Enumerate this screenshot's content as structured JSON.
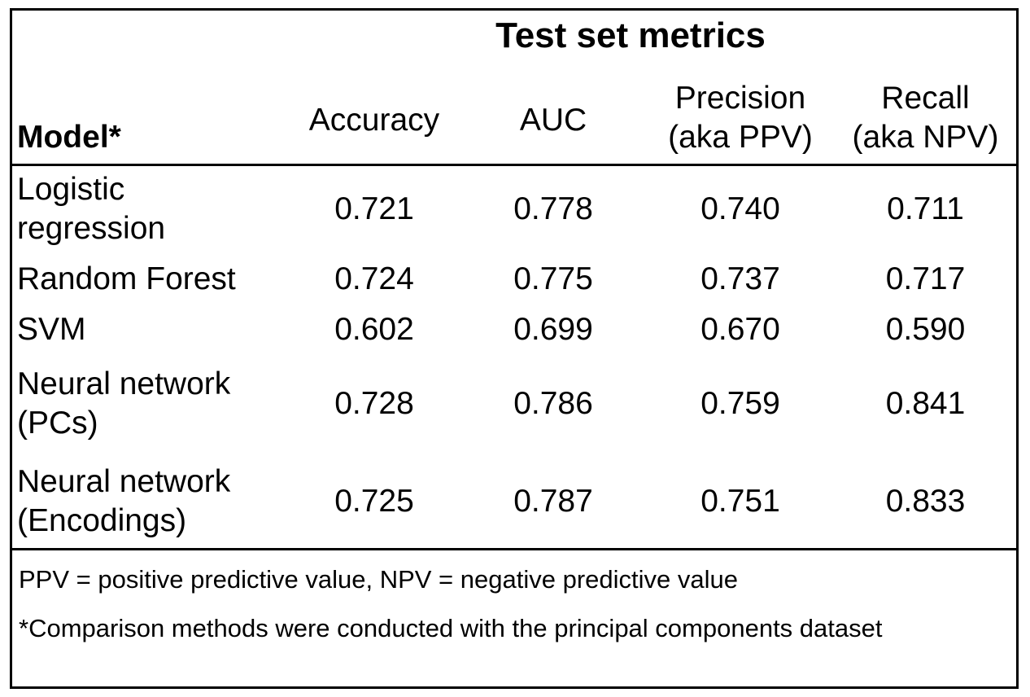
{
  "table": {
    "title": "Test set metrics",
    "model_header": "Model*",
    "columns": [
      {
        "line1": "Accuracy",
        "line2": ""
      },
      {
        "line1": "AUC",
        "line2": ""
      },
      {
        "line1": "Precision",
        "line2": "(aka PPV)"
      },
      {
        "line1": "Recall",
        "line2": "(aka NPV)"
      }
    ],
    "rows": [
      {
        "model_line1": "Logistic",
        "model_line2": "regression",
        "values": [
          "0.721",
          "0.778",
          "0.740",
          "0.711"
        ]
      },
      {
        "model_line1": "Random Forest",
        "model_line2": "",
        "values": [
          "0.724",
          "0.775",
          "0.737",
          "0.717"
        ]
      },
      {
        "model_line1": "SVM",
        "model_line2": "",
        "values": [
          "0.602",
          "0.699",
          "0.670",
          "0.590"
        ]
      },
      {
        "model_line1": "Neural network",
        "model_line2": "(PCs)",
        "values": [
          "0.728",
          "0.786",
          "0.759",
          "0.841"
        ]
      },
      {
        "model_line1": "Neural network",
        "model_line2": "(Encodings)",
        "values": [
          "0.725",
          "0.787",
          "0.751",
          "0.833"
        ]
      }
    ],
    "footnotes": [
      "PPV = positive predictive value, NPV = negative predictive value",
      "*Comparison methods were conducted with the principal components dataset"
    ]
  }
}
